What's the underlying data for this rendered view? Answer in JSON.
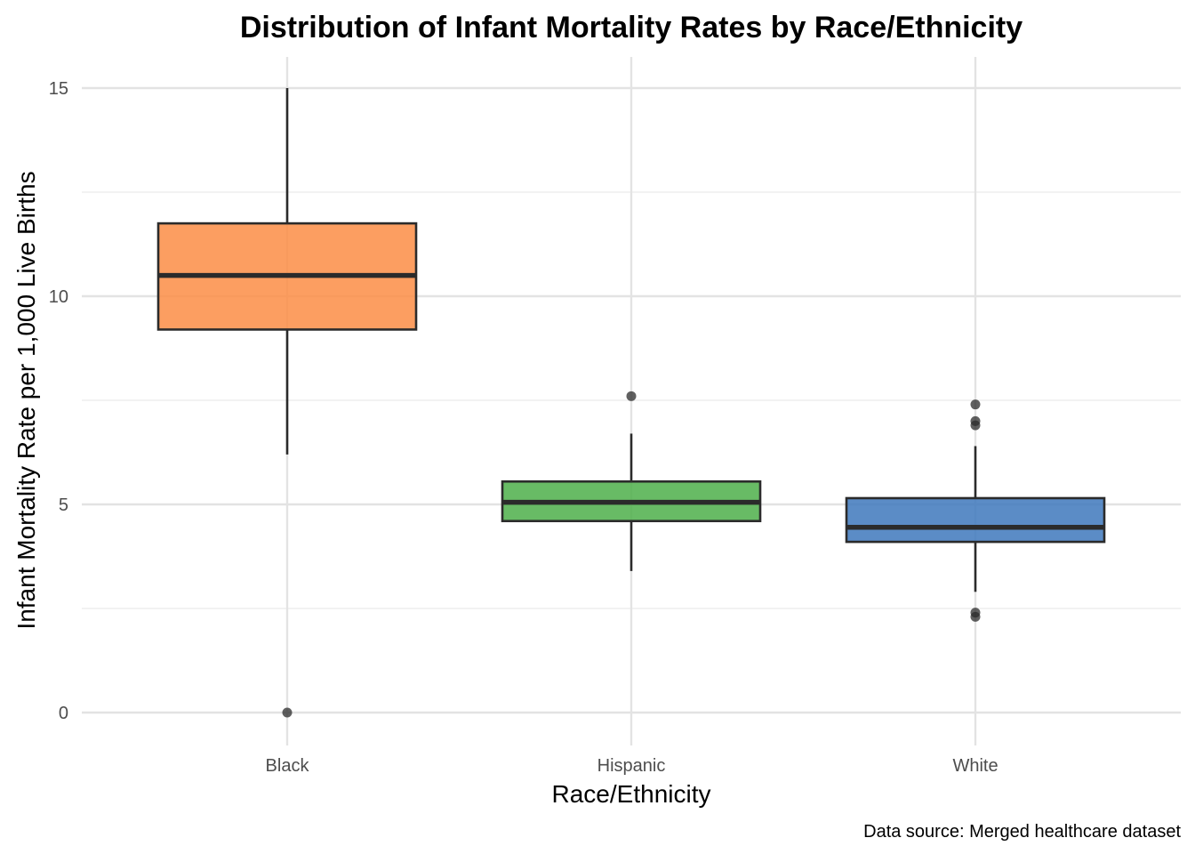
{
  "chart_data": {
    "type": "boxplot",
    "title": "Distribution of Infant Mortality Rates by Race/Ethnicity",
    "xlabel": "Race/Ethnicity",
    "ylabel": "Infant Mortality Rate per 1,000 Live Births",
    "caption": "Data source: Merged healthcare dataset",
    "ylim": [
      -0.7,
      15.8
    ],
    "yticks": [
      0,
      5,
      10,
      15
    ],
    "ytick_labels": [
      "0",
      "5",
      "10",
      "15"
    ],
    "grid": true,
    "categories": [
      "Black",
      "Hispanic",
      "White"
    ],
    "boxes": [
      {
        "category": "Black",
        "color": "#FC8D45",
        "whisker_low": 6.2,
        "q1": 9.2,
        "median": 10.5,
        "q3": 11.75,
        "whisker_high": 15.0,
        "outliers": [
          0.0
        ]
      },
      {
        "category": "Hispanic",
        "color": "#4DAF4A",
        "whisker_low": 3.4,
        "q1": 4.6,
        "median": 5.05,
        "q3": 5.55,
        "whisker_high": 6.7,
        "outliers": [
          7.6
        ]
      },
      {
        "category": "White",
        "color": "#3E78BC",
        "whisker_low": 2.9,
        "q1": 4.1,
        "median": 4.45,
        "q3": 5.15,
        "whisker_high": 6.4,
        "outliers": [
          7.4,
          7.0,
          6.9,
          2.4,
          2.3
        ]
      }
    ]
  }
}
